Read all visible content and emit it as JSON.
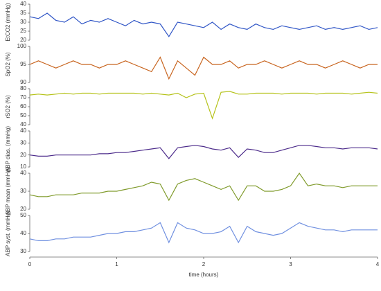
{
  "chart_data": [
    {
      "type": "line",
      "y_label": "EtCO2 (mmHg)",
      "color": "#2f55c6",
      "x": [
        0,
        0.1,
        0.2,
        0.3,
        0.4,
        0.5,
        0.6,
        0.7,
        0.8,
        0.9,
        1,
        1.1,
        1.2,
        1.3,
        1.4,
        1.5,
        1.6,
        1.7,
        1.8,
        1.9,
        2,
        2.1,
        2.2,
        2.3,
        2.4,
        2.5,
        2.6,
        2.7,
        2.8,
        2.9,
        3,
        3.1,
        3.2,
        3.3,
        3.4,
        3.5,
        3.6,
        3.7,
        3.8,
        3.9,
        4
      ],
      "values": [
        33,
        32,
        35,
        31,
        30,
        33,
        29,
        31,
        30,
        32,
        30,
        28,
        31,
        29,
        30,
        29,
        22,
        30,
        29,
        28,
        27,
        30,
        26,
        29,
        27,
        26,
        29,
        27,
        26,
        28,
        27,
        26,
        27,
        28,
        26,
        27,
        26,
        27,
        28,
        26,
        27
      ],
      "xlim": [
        0,
        4
      ],
      "ylim": [
        20,
        40
      ],
      "yticks": [
        20,
        25,
        30,
        35,
        40
      ]
    },
    {
      "type": "line",
      "y_label": "SpO2 (%)",
      "color": "#c8641e",
      "x": [
        0,
        0.1,
        0.2,
        0.3,
        0.4,
        0.5,
        0.6,
        0.7,
        0.8,
        0.9,
        1,
        1.1,
        1.2,
        1.3,
        1.4,
        1.5,
        1.6,
        1.7,
        1.8,
        1.9,
        2,
        2.1,
        2.2,
        2.3,
        2.4,
        2.5,
        2.6,
        2.7,
        2.8,
        2.9,
        3,
        3.1,
        3.2,
        3.3,
        3.4,
        3.5,
        3.6,
        3.7,
        3.8,
        3.9,
        4
      ],
      "values": [
        95,
        96,
        95,
        94,
        95,
        96,
        95,
        95,
        94,
        95,
        95,
        96,
        95,
        94,
        93,
        97,
        91,
        96,
        94,
        92,
        97,
        95,
        95,
        96,
        94,
        95,
        95,
        96,
        95,
        94,
        95,
        96,
        95,
        95,
        94,
        95,
        96,
        95,
        94,
        95,
        95
      ],
      "xlim": [
        0,
        4
      ],
      "ylim": [
        90,
        100
      ],
      "yticks": [
        90,
        95,
        100
      ]
    },
    {
      "type": "line",
      "y_label": "rSO2 (%)",
      "color": "#b5c219",
      "x": [
        0,
        0.1,
        0.2,
        0.3,
        0.4,
        0.5,
        0.6,
        0.7,
        0.8,
        0.9,
        1,
        1.1,
        1.2,
        1.3,
        1.4,
        1.5,
        1.6,
        1.7,
        1.8,
        1.9,
        2,
        2.1,
        2.2,
        2.3,
        2.4,
        2.5,
        2.6,
        2.7,
        2.8,
        2.9,
        3,
        3.1,
        3.2,
        3.3,
        3.4,
        3.5,
        3.6,
        3.7,
        3.8,
        3.9,
        4
      ],
      "values": [
        73,
        74,
        73,
        74,
        75,
        74,
        75,
        75,
        74,
        75,
        75,
        75,
        75,
        74,
        75,
        74,
        73,
        75,
        70,
        74,
        75,
        47,
        76,
        77,
        74,
        74,
        75,
        75,
        75,
        74,
        75,
        75,
        75,
        74,
        75,
        75,
        75,
        74,
        75,
        76,
        75
      ],
      "xlim": [
        0,
        4
      ],
      "ylim": [
        40,
        80
      ],
      "yticks": [
        40,
        50,
        60,
        70,
        80
      ]
    },
    {
      "type": "line",
      "y_label": "ABP dias. (mmHg)",
      "color": "#4b2a8a",
      "x": [
        0,
        0.1,
        0.2,
        0.3,
        0.4,
        0.5,
        0.6,
        0.7,
        0.8,
        0.9,
        1,
        1.1,
        1.2,
        1.3,
        1.4,
        1.5,
        1.6,
        1.7,
        1.8,
        1.9,
        2,
        2.1,
        2.2,
        2.3,
        2.4,
        2.5,
        2.6,
        2.7,
        2.8,
        2.9,
        3,
        3.1,
        3.2,
        3.3,
        3.4,
        3.5,
        3.6,
        3.7,
        3.8,
        3.9,
        4
      ],
      "values": [
        20,
        19,
        19,
        20,
        20,
        20,
        20,
        20,
        21,
        21,
        22,
        22,
        23,
        24,
        25,
        26,
        17,
        26,
        27,
        28,
        27,
        25,
        24,
        26,
        18,
        25,
        24,
        22,
        22,
        24,
        26,
        28,
        28,
        27,
        26,
        26,
        25,
        26,
        26,
        26,
        25
      ],
      "xlim": [
        0,
        4
      ],
      "ylim": [
        10,
        40
      ],
      "yticks": [
        10,
        20,
        30,
        40
      ]
    },
    {
      "type": "line",
      "y_label": "ABP mean (mmHg)",
      "color": "#7f9a2a",
      "x": [
        0,
        0.1,
        0.2,
        0.3,
        0.4,
        0.5,
        0.6,
        0.7,
        0.8,
        0.9,
        1,
        1.1,
        1.2,
        1.3,
        1.4,
        1.5,
        1.6,
        1.7,
        1.8,
        1.9,
        2,
        2.1,
        2.2,
        2.3,
        2.4,
        2.5,
        2.6,
        2.7,
        2.8,
        2.9,
        3,
        3.1,
        3.2,
        3.3,
        3.4,
        3.5,
        3.6,
        3.7,
        3.8,
        3.9,
        4
      ],
      "values": [
        28,
        27,
        27,
        28,
        28,
        28,
        29,
        29,
        29,
        30,
        30,
        31,
        32,
        33,
        35,
        34,
        25,
        34,
        36,
        37,
        35,
        33,
        31,
        33,
        25,
        33,
        33,
        30,
        30,
        31,
        33,
        40,
        33,
        34,
        33,
        33,
        32,
        33,
        33,
        33,
        33
      ],
      "xlim": [
        0,
        4
      ],
      "ylim": [
        20,
        40
      ],
      "yticks": [
        20,
        30,
        40
      ]
    },
    {
      "type": "line",
      "y_label": "ABP syst. (mmHg)",
      "color": "#7090e0",
      "x": [
        0,
        0.1,
        0.2,
        0.3,
        0.4,
        0.5,
        0.6,
        0.7,
        0.8,
        0.9,
        1,
        1.1,
        1.2,
        1.3,
        1.4,
        1.5,
        1.6,
        1.7,
        1.8,
        1.9,
        2,
        2.1,
        2.2,
        2.3,
        2.4,
        2.5,
        2.6,
        2.7,
        2.8,
        2.9,
        3,
        3.1,
        3.2,
        3.3,
        3.4,
        3.5,
        3.6,
        3.7,
        3.8,
        3.9,
        4
      ],
      "values": [
        37,
        36,
        36,
        37,
        37,
        38,
        38,
        38,
        39,
        40,
        40,
        41,
        41,
        42,
        43,
        46,
        35,
        46,
        43,
        42,
        40,
        40,
        41,
        44,
        35,
        44,
        41,
        40,
        39,
        40,
        43,
        46,
        44,
        43,
        42,
        42,
        41,
        42,
        42,
        42,
        42
      ],
      "xlim": [
        0,
        4
      ],
      "ylim": [
        30,
        50
      ],
      "yticks": [
        30,
        40,
        50
      ],
      "xticks": [
        0,
        1,
        2,
        3,
        4
      ],
      "x_label": "time (hours)"
    }
  ]
}
